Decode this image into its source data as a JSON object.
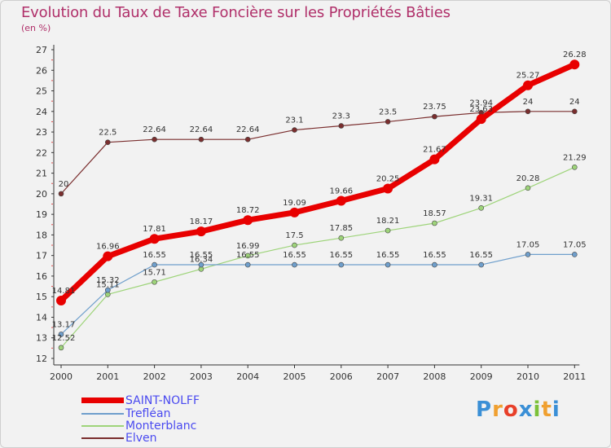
{
  "title": "Evolution du Taux de Taxe Foncière sur les Propriétés Bâties",
  "subtitle": "(en %)",
  "logo": {
    "letters": [
      "P",
      "r",
      "o",
      "x",
      "i",
      "t",
      "i"
    ],
    "colors": [
      "#3a8fd6",
      "#f0a030",
      "#e8402a",
      "#3a8fd6",
      "#7cc13a",
      "#f0a030",
      "#3a8fd6"
    ]
  },
  "chart_data": {
    "type": "line",
    "x": [
      "2000",
      "2001",
      "2002",
      "2003",
      "2004",
      "2005",
      "2006",
      "2007",
      "2008",
      "2009",
      "2010",
      "2011"
    ],
    "ylim": [
      12,
      27
    ],
    "yticks": [
      12,
      13,
      14,
      15,
      16,
      17,
      18,
      19,
      20,
      21,
      22,
      23,
      24,
      25,
      26,
      27
    ],
    "grid": false,
    "legend_position": "bottom-left",
    "series": [
      {
        "name": "SAINT-NOLFF",
        "color": "#e80000",
        "width": 7,
        "marker_r": 6,
        "values": [
          14.81,
          16.96,
          17.81,
          18.17,
          18.72,
          19.09,
          19.66,
          20.25,
          21.67,
          23.63,
          25.27,
          26.28
        ],
        "labels": [
          "14.81",
          "16.96",
          "17.81",
          "18.17",
          "18.72",
          "19.09",
          "19.66",
          "20.25",
          "21.67",
          "23.63",
          "25.27",
          "26.28"
        ]
      },
      {
        "name": "Trefléan",
        "color": "#6f9fcc",
        "width": 1.2,
        "marker_r": 3,
        "values": [
          13.17,
          15.32,
          16.55,
          16.55,
          16.55,
          16.55,
          16.55,
          16.55,
          16.55,
          16.55,
          17.05,
          17.05
        ],
        "labels": [
          "13.17",
          "15.32",
          "16.55",
          "16.55",
          "16.55",
          "16.55",
          "16.55",
          "16.55",
          "16.55",
          "16.55",
          "17.05",
          "17.05"
        ]
      },
      {
        "name": "Monterblanc",
        "color": "#9ed47a",
        "width": 1.2,
        "marker_r": 3,
        "values": [
          12.52,
          15.11,
          15.71,
          16.34,
          16.99,
          17.5,
          17.85,
          18.21,
          18.57,
          19.31,
          20.28,
          21.29
        ],
        "labels": [
          "12.52",
          "15.11",
          "15.71",
          "16.34",
          "16.99",
          "17.5",
          "17.85",
          "18.21",
          "18.57",
          "19.31",
          "20.28",
          "21.29"
        ]
      },
      {
        "name": "Elven",
        "color": "#7a2e2e",
        "width": 1.2,
        "marker_r": 3,
        "values": [
          20,
          22.5,
          22.64,
          22.64,
          22.64,
          23.1,
          23.3,
          23.5,
          23.75,
          23.94,
          24,
          24
        ],
        "labels": [
          "20",
          "22.5",
          "22.64",
          "22.64",
          "22.64",
          "23.1",
          "23.3",
          "23.5",
          "23.75",
          "23.94",
          "24",
          "24"
        ]
      }
    ]
  }
}
